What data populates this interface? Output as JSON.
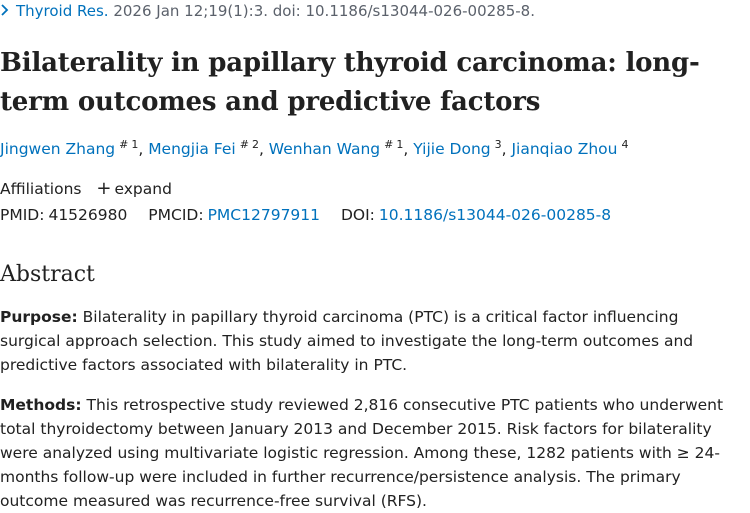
{
  "citation": {
    "journal": "Thyroid Res.",
    "details": " 2026 Jan 12;19(1):3. doi: 10.1186/s13044-026-00285-8."
  },
  "article": {
    "title": "Bilaterality in papillary thyroid carcinoma: long-term outcomes and predictive factors"
  },
  "authors": [
    {
      "name": "Jingwen Zhang",
      "marks": [
        "#",
        "1"
      ]
    },
    {
      "name": "Mengjia Fei",
      "marks": [
        "#",
        "2"
      ]
    },
    {
      "name": "Wenhan Wang",
      "marks": [
        "#",
        "1"
      ]
    },
    {
      "name": "Yijie Dong",
      "marks": [
        "3"
      ]
    },
    {
      "name": "Jianqiao Zhou",
      "marks": [
        "4"
      ]
    }
  ],
  "affiliations": {
    "label": "Affiliations",
    "expand_label": "expand"
  },
  "identifiers": {
    "pmid_label": "PMID:",
    "pmid": "41526980",
    "pmcid_label": "PMCID:",
    "pmcid": "PMC12797911",
    "doi_label": "DOI:",
    "doi": "10.1186/s13044-026-00285-8"
  },
  "abstract": {
    "heading": "Abstract",
    "purpose_label": "Purpose:",
    "purpose_text": " Bilaterality in papillary thyroid carcinoma (PTC) is a critical factor influencing surgical approach selection. This study aimed to investigate the long-term outcomes and predictive factors associated with bilaterality in PTC.",
    "methods_label": "Methods:",
    "methods_text": " This retrospective study reviewed 2,816 consecutive PTC patients who underwent total thyroidectomy between January 2013 and December 2015. Risk factors for bilaterality were analyzed using multivariate logistic regression. Among these, 1282 patients with ≥ 24-months follow-up were included in further recurrence/persistence analysis. The primary outcome measured was recurrence-free survival (RFS)."
  }
}
